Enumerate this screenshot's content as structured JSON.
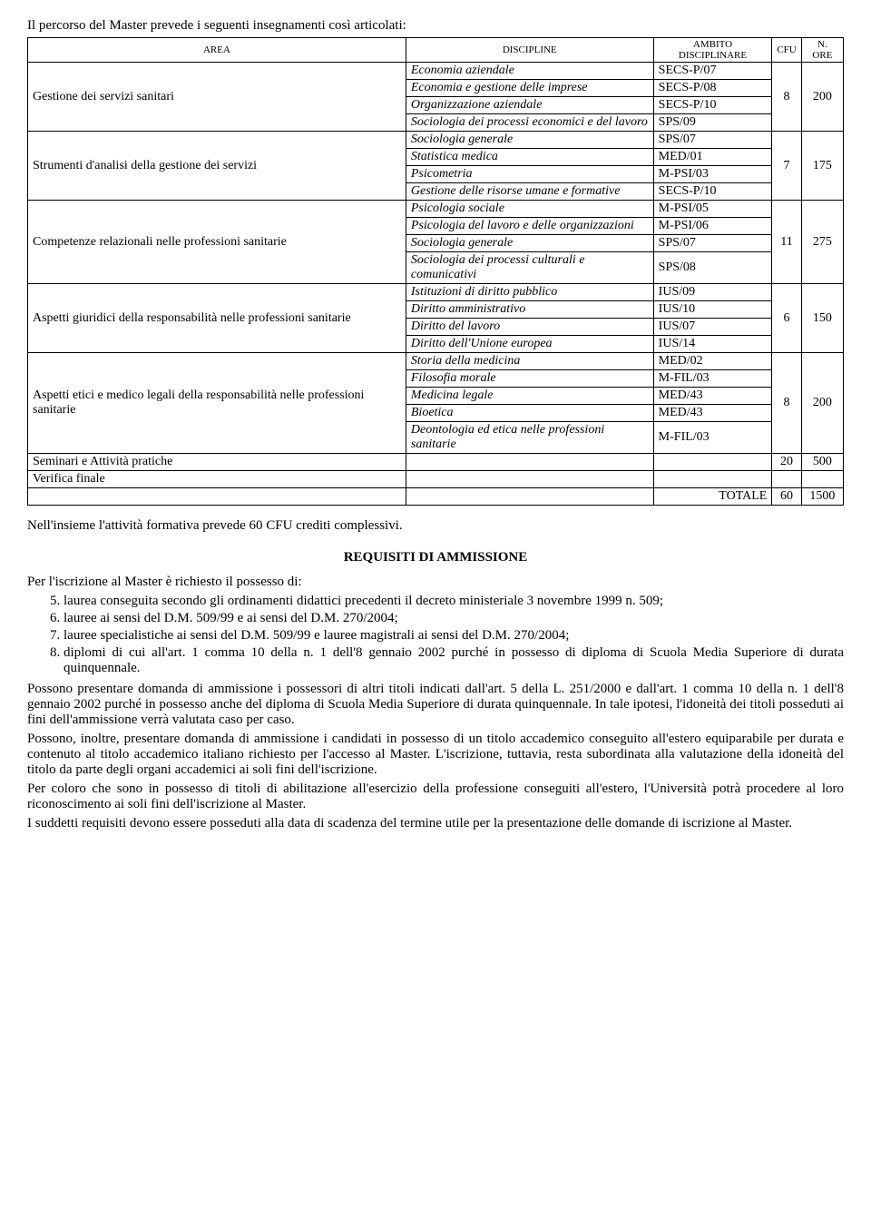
{
  "intro": "Il percorso del Master prevede i seguenti insegnamenti così articolati:",
  "headers": {
    "area": "AREA",
    "discipline": "DISCIPLINE",
    "ambito": "AMBITO DISCIPLINARE",
    "cfu": "CFU",
    "ore": "N. ORE"
  },
  "g1": {
    "area": "Gestione dei servizi sanitari",
    "d1": "Economia aziendale",
    "c1": "SECS-P/07",
    "d2": "Economia e gestione delle imprese",
    "c2": "SECS-P/08",
    "d3": "Organizzazione aziendale",
    "c3": "SECS-P/10",
    "d4": "Sociologia dei processi economici e del lavoro",
    "c4": "SPS/09",
    "cfu": "8",
    "ore": "200"
  },
  "g2": {
    "area": "Strumenti d'analisi della gestione dei servizi",
    "d1": "Sociologia generale",
    "c1": "SPS/07",
    "d2": "Statistica medica",
    "c2": "MED/01",
    "d3": "Psicometria",
    "c3": "M-PSI/03",
    "d4": "Gestione delle risorse umane e formative",
    "c4": "SECS-P/10",
    "cfu": "7",
    "ore": "175"
  },
  "g3": {
    "area": "Competenze relazionali nelle professioni sanitarie",
    "d1": "Psicologia sociale",
    "c1": "M-PSI/05",
    "d2": "Psicologia del lavoro e delle organizzazioni",
    "c2": "M-PSI/06",
    "d3": "Sociologia generale",
    "c3": "SPS/07",
    "d4": "Sociologia dei processi culturali e comunicativi",
    "c4": "SPS/08",
    "cfu": "11",
    "ore": "275"
  },
  "g4": {
    "area": "Aspetti giuridici della responsabilità nelle professioni sanitarie",
    "d1": "Istituzioni di diritto pubblico",
    "c1": "IUS/09",
    "d2": "Diritto amministrativo",
    "c2": "IUS/10",
    "d3": "Diritto del lavoro",
    "c3": "IUS/07",
    "d4": "Diritto dell'Unione europea",
    "c4": "IUS/14",
    "cfu": "6",
    "ore": "150"
  },
  "g5": {
    "area": "Aspetti etici e medico legali della responsabilità nelle professioni sanitarie",
    "d1": "Storia della medicina",
    "c1": "MED/02",
    "d2": "Filosofia morale",
    "c2": "M-FIL/03",
    "d3": "Medicina legale",
    "c3": "MED/43",
    "d4": "Bioetica",
    "c4": "MED/43",
    "d5": "Deontologia ed etica nelle professioni sanitarie",
    "c5": "M-FIL/03",
    "cfu": "8",
    "ore": "200"
  },
  "seminari": {
    "area": "Seminari e Attività pratiche",
    "cfu": "20",
    "ore": "500"
  },
  "verifica": {
    "area": "Verifica finale"
  },
  "totale": {
    "label": "TOTALE",
    "cfu": "60",
    "ore": "1500"
  },
  "after_table": "Nell'insieme l'attività formativa prevede 60 CFU crediti complessivi.",
  "section_title": "REQUISITI DI AMMISSIONE",
  "req_intro": "Per l'iscrizione al Master è richiesto il possesso di:",
  "req": {
    "i5": "laurea conseguita secondo gli ordinamenti didattici precedenti il decreto ministeriale 3 novembre 1999 n. 509;",
    "i6": "lauree ai sensi del D.M. 509/99 e ai sensi del D.M. 270/2004;",
    "i7": "lauree specialistiche ai sensi del D.M. 509/99 e lauree magistrali ai sensi del D.M. 270/2004;",
    "i8": "diplomi di cui all'art. 1 comma 10 della n. 1 dell'8 gennaio 2002 purché in possesso di diploma di Scuola Media Superiore di durata quinquennale."
  },
  "p1": "Possono presentare domanda di ammissione i possessori di altri titoli indicati dall'art. 5 della L. 251/2000 e dall'art. 1 comma 10 della n. 1 dell'8 gennaio 2002 purché in possesso anche del diploma di Scuola Media Superiore di durata quinquennale. In tale ipotesi, l'idoneità dei titoli posseduti ai fini dell'ammissione verrà valutata caso per caso.",
  "p2": "Possono, inoltre, presentare domanda di ammissione i candidati in possesso di un titolo accademico conseguito all'estero equiparabile per durata e contenuto al titolo accademico italiano richiesto per l'accesso al Master. L'iscrizione, tuttavia, resta subordinata alla valutazione della idoneità del titolo da parte degli organi accademici ai soli fini dell'iscrizione.",
  "p3": "Per coloro che sono in possesso di titoli di abilitazione all'esercizio della professione conseguiti all'estero, l'Università potrà procedere al loro riconoscimento ai soli fini dell'iscrizione al Master.",
  "p4": "I suddetti requisiti devono essere posseduti alla data di scadenza del termine utile per la presentazione delle domande di iscrizione al Master."
}
